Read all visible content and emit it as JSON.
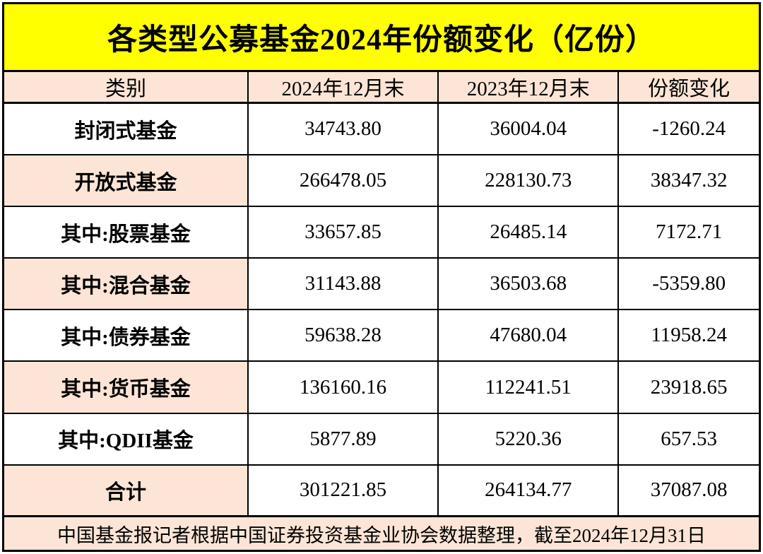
{
  "title": "各类型公募基金2024年份额变化（亿份）",
  "table": {
    "columns": [
      "类别",
      "2024年12月末",
      "2023年12月末",
      "份额变化"
    ],
    "rows": [
      {
        "category": "封闭式基金",
        "v2024": "34743.80",
        "v2023": "36004.04",
        "change": "-1260.24",
        "highlight": false
      },
      {
        "category": "开放式基金",
        "v2024": "266478.05",
        "v2023": "228130.73",
        "change": "38347.32",
        "highlight": true
      },
      {
        "category": "其中:股票基金",
        "v2024": "33657.85",
        "v2023": "26485.14",
        "change": "7172.71",
        "highlight": false
      },
      {
        "category": "其中:混合基金",
        "v2024": "31143.88",
        "v2023": "36503.68",
        "change": "-5359.80",
        "highlight": true
      },
      {
        "category": "其中:债券基金",
        "v2024": "59638.28",
        "v2023": "47680.04",
        "change": "11958.24",
        "highlight": false
      },
      {
        "category": "其中:货币基金",
        "v2024": "136160.16",
        "v2023": "112241.51",
        "change": "23918.65",
        "highlight": true
      },
      {
        "category": "其中:QDII基金",
        "v2024": "5877.89",
        "v2023": "5220.36",
        "change": "657.53",
        "highlight": false
      },
      {
        "category": "合计",
        "v2024": "301221.85",
        "v2023": "264134.77",
        "change": "37087.08",
        "highlight": true
      }
    ]
  },
  "footer": "中国基金报记者根据中国证券投资基金业协会数据整理，截至2024年12月31日",
  "colors": {
    "title_bg": "#FFFF00",
    "header_bg": "#FCE5D6",
    "highlight_bg": "#FCE5D6",
    "border": "#000000",
    "text": "#000000"
  },
  "chart_data": {
    "type": "table",
    "title": "各类型公募基金2024年份额变化（亿份）",
    "columns": [
      "类别",
      "2024年12月末",
      "2023年12月末",
      "份额变化"
    ],
    "unit": "亿份",
    "rows": [
      [
        "封闭式基金",
        34743.8,
        36004.04,
        -1260.24
      ],
      [
        "开放式基金",
        266478.05,
        228130.73,
        38347.32
      ],
      [
        "其中:股票基金",
        33657.85,
        26485.14,
        7172.71
      ],
      [
        "其中:混合基金",
        31143.88,
        36503.68,
        -5359.8
      ],
      [
        "其中:债券基金",
        59638.28,
        47680.04,
        11958.24
      ],
      [
        "其中:货币基金",
        136160.16,
        112241.51,
        23918.65
      ],
      [
        "其中:QDII基金",
        5877.89,
        5220.36,
        657.53
      ],
      [
        "合计",
        301221.85,
        264134.77,
        37087.08
      ]
    ],
    "source_note": "中国基金报记者根据中国证券投资基金业协会数据整理，截至2024年12月31日"
  }
}
